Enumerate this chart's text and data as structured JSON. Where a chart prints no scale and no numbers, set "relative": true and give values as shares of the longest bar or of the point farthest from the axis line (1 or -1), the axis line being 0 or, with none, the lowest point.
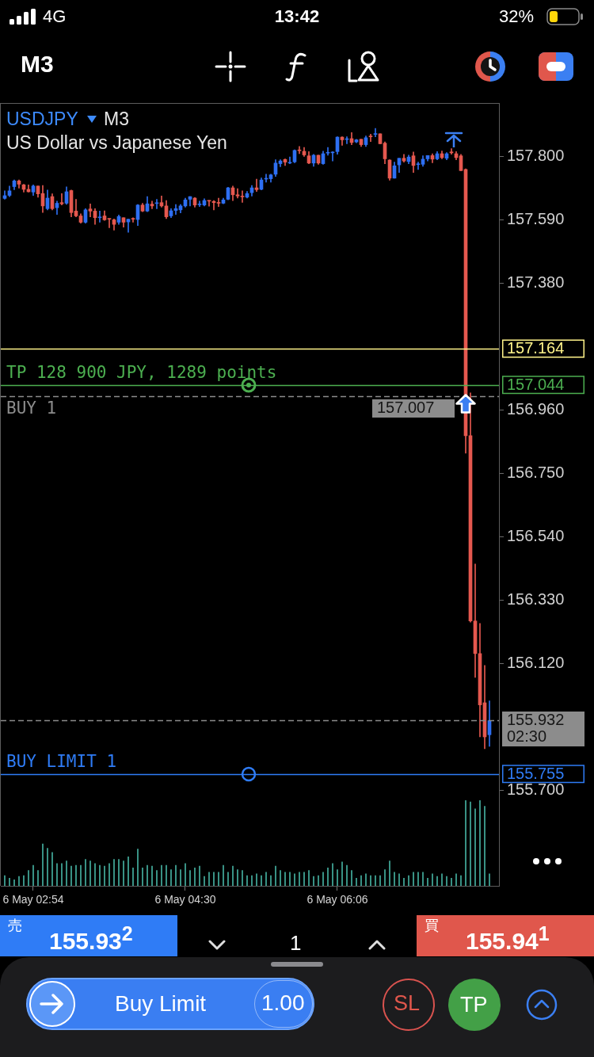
{
  "chart_data": [
    {
      "type": "candlestick",
      "title": "USDJPY",
      "subtitle": "US Dollar vs Japanese Yen",
      "categories": [
        null,
        null,
        null,
        null,
        null,
        null,
        null,
        null,
        null,
        null,
        null,
        null,
        null,
        null,
        null,
        null,
        null,
        null,
        null,
        null,
        null,
        null,
        null,
        null,
        null,
        null,
        null,
        null,
        null,
        null,
        null,
        null,
        null,
        null,
        null,
        null,
        null,
        null,
        null,
        null,
        null,
        null,
        null,
        null,
        null,
        null,
        null,
        null,
        null,
        null,
        null,
        null,
        null,
        null,
        null,
        null,
        null,
        null,
        null,
        null,
        null,
        null,
        null,
        null,
        null,
        null,
        null,
        null,
        null,
        null,
        null,
        null,
        null,
        null,
        null,
        null,
        null,
        null,
        null,
        null,
        null,
        null,
        null,
        null,
        null,
        null,
        null,
        null,
        null,
        null,
        null,
        null,
        null,
        null,
        null,
        null,
        null,
        null,
        null,
        null,
        null,
        null,
        null
      ],
      "ohlc": [
        [
          157.662,
          157.687,
          157.659,
          157.671
        ],
        [
          157.672,
          157.703,
          157.668,
          157.687
        ],
        [
          157.701,
          157.723,
          157.691,
          157.72
        ],
        [
          157.72,
          157.723,
          157.696,
          157.709
        ],
        [
          157.707,
          157.709,
          157.683,
          157.692
        ],
        [
          157.692,
          157.707,
          157.683,
          157.684
        ],
        [
          157.683,
          157.707,
          157.672,
          157.703
        ],
        [
          157.703,
          157.703,
          157.666,
          157.677
        ],
        [
          157.678,
          157.705,
          157.615,
          157.637
        ],
        [
          157.628,
          157.69,
          157.624,
          157.663
        ],
        [
          157.668,
          157.677,
          157.624,
          157.628
        ],
        [
          157.631,
          157.653,
          157.609,
          157.646
        ],
        [
          157.648,
          157.678,
          157.64,
          157.644
        ],
        [
          157.646,
          157.7,
          157.642,
          157.684
        ],
        [
          157.688,
          157.69,
          157.601,
          157.615
        ],
        [
          157.62,
          157.659,
          157.601,
          157.604
        ],
        [
          157.604,
          157.611,
          157.58,
          157.583
        ],
        [
          157.583,
          157.628,
          157.58,
          157.624
        ],
        [
          157.627,
          157.644,
          157.601,
          157.62
        ],
        [
          157.62,
          157.628,
          157.576,
          157.598
        ],
        [
          157.598,
          157.62,
          157.583,
          157.599
        ],
        [
          157.604,
          157.621,
          157.589,
          157.591
        ],
        [
          157.594,
          157.595,
          157.565,
          157.593
        ],
        [
          157.591,
          157.594,
          157.557,
          157.576
        ],
        [
          157.583,
          157.607,
          157.576,
          157.602
        ],
        [
          157.598,
          157.598,
          157.567,
          157.583
        ],
        [
          157.584,
          157.593,
          157.55,
          157.593
        ],
        [
          157.594,
          157.598,
          157.583,
          157.593
        ],
        [
          157.592,
          157.642,
          157.572,
          157.64
        ],
        [
          157.64,
          157.646,
          157.618,
          157.62
        ],
        [
          157.62,
          157.668,
          157.618,
          157.644
        ],
        [
          157.643,
          157.653,
          157.628,
          157.637
        ],
        [
          157.645,
          157.659,
          157.628,
          157.646
        ],
        [
          157.648,
          157.67,
          157.633,
          157.637
        ],
        [
          157.637,
          157.655,
          157.595,
          157.601
        ],
        [
          157.604,
          157.628,
          157.598,
          157.621
        ],
        [
          157.622,
          157.642,
          157.609,
          157.628
        ],
        [
          157.624,
          157.642,
          157.614,
          157.637
        ],
        [
          157.637,
          157.663,
          157.633,
          157.657
        ],
        [
          157.659,
          157.668,
          157.637,
          157.668
        ],
        [
          157.663,
          157.665,
          157.633,
          157.64
        ],
        [
          157.641,
          157.653,
          157.635,
          157.642
        ],
        [
          157.64,
          157.661,
          157.637,
          157.655
        ],
        [
          157.655,
          157.655,
          157.636,
          157.653
        ],
        [
          157.652,
          157.655,
          157.624,
          157.648
        ],
        [
          157.648,
          157.663,
          157.635,
          157.646
        ],
        [
          157.646,
          157.663,
          157.644,
          157.657
        ],
        [
          157.659,
          157.699,
          157.657,
          157.697
        ],
        [
          157.697,
          157.703,
          157.655,
          157.674
        ],
        [
          157.674,
          157.694,
          157.663,
          157.67
        ],
        [
          157.669,
          157.687,
          157.649,
          157.667
        ],
        [
          157.666,
          157.685,
          157.663,
          157.678
        ],
        [
          157.681,
          157.705,
          157.67,
          157.697
        ],
        [
          157.697,
          157.726,
          157.685,
          157.691
        ],
        [
          157.692,
          157.73,
          157.69,
          157.723
        ],
        [
          157.726,
          157.742,
          157.716,
          157.727
        ],
        [
          157.727,
          157.742,
          157.716,
          157.74
        ],
        [
          157.742,
          157.79,
          157.735,
          157.779
        ],
        [
          157.777,
          157.79,
          157.767,
          157.786
        ],
        [
          157.791,
          157.793,
          157.771,
          157.782
        ],
        [
          157.779,
          157.799,
          157.777,
          157.78
        ],
        [
          157.783,
          157.823,
          157.78,
          157.821
        ],
        [
          157.822,
          157.834,
          157.81,
          157.82
        ],
        [
          157.818,
          157.831,
          157.801,
          157.806
        ],
        [
          157.803,
          157.817,
          157.777,
          157.779
        ],
        [
          157.779,
          157.808,
          157.768,
          157.805
        ],
        [
          157.805,
          157.805,
          157.775,
          157.779
        ],
        [
          157.777,
          157.818,
          157.775,
          157.81
        ],
        [
          157.812,
          157.831,
          157.805,
          157.813
        ],
        [
          157.813,
          157.817,
          157.786,
          157.814
        ],
        [
          157.817,
          157.866,
          157.808,
          157.865
        ],
        [
          157.865,
          157.866,
          157.838,
          157.856
        ],
        [
          157.857,
          157.866,
          157.843,
          157.858
        ],
        [
          157.86,
          157.88,
          157.84,
          157.847
        ],
        [
          157.849,
          157.858,
          157.846,
          157.856
        ],
        [
          157.858,
          157.858,
          157.834,
          157.84
        ],
        [
          157.84,
          157.869,
          157.834,
          157.863
        ],
        [
          157.868,
          157.875,
          157.85,
          157.866
        ],
        [
          157.874,
          157.894,
          157.866,
          157.875
        ],
        [
          157.876,
          157.876,
          157.843,
          157.843
        ],
        [
          157.845,
          157.849,
          157.777,
          157.793
        ],
        [
          157.789,
          157.79,
          157.722,
          157.729
        ],
        [
          157.729,
          157.782,
          157.729,
          157.77
        ],
        [
          157.773,
          157.795,
          157.748,
          157.795
        ],
        [
          157.795,
          157.808,
          157.782,
          157.786
        ],
        [
          157.784,
          157.805,
          157.777,
          157.799
        ],
        [
          157.803,
          157.816,
          157.748,
          157.771
        ],
        [
          157.774,
          157.782,
          157.758,
          157.775
        ],
        [
          157.775,
          157.803,
          157.768,
          157.792
        ],
        [
          157.793,
          157.804,
          157.786,
          157.804
        ],
        [
          157.804,
          157.81,
          157.78,
          157.792
        ],
        [
          157.793,
          157.817,
          157.79,
          157.81
        ],
        [
          157.81,
          157.819,
          157.793,
          157.797
        ],
        [
          157.795,
          157.814,
          157.79,
          157.81
        ],
        [
          157.816,
          157.827,
          157.808,
          157.813
        ],
        [
          157.81,
          157.817,
          157.79,
          157.797
        ],
        [
          157.803,
          157.808,
          157.754,
          157.754
        ],
        [
          157.758,
          157.76,
          156.818,
          156.876
        ],
        [
          156.876,
          157.018,
          156.258,
          156.262
        ],
        [
          156.262,
          156.451,
          156.075,
          156.154
        ],
        [
          156.154,
          156.254,
          155.878,
          155.984
        ],
        [
          155.991,
          156.115,
          155.839,
          155.878
        ],
        [
          155.885,
          155.997,
          155.847,
          155.932
        ]
      ],
      "colors": [
        "#2e6ff2",
        "#2e6ff2",
        "#2e6ff2",
        "#e5584f",
        "#e5584f",
        "#e5584f",
        "#2e6ff2",
        "#e5584f",
        "#e5584f",
        "#2e6ff2",
        "#e5584f",
        "#2e6ff2",
        "#e5584f",
        "#2e6ff2",
        "#e5584f",
        "#e5584f",
        "#e5584f",
        "#2e6ff2",
        "#e5584f",
        "#e5584f",
        "#2e6ff2",
        "#e5584f",
        "#e5584f",
        "#e5584f",
        "#2e6ff2",
        "#e5584f",
        "#2e6ff2",
        "#e5584f",
        "#2e6ff2",
        "#e5584f",
        "#2e6ff2",
        "#e5584f",
        "#2e6ff2",
        "#e5584f",
        "#e5584f",
        "#2e6ff2",
        "#2e6ff2",
        "#2e6ff2",
        "#2e6ff2",
        "#2e6ff2",
        "#e5584f",
        "#2e6ff2",
        "#2e6ff2",
        "#e5584f",
        "#e5584f",
        "#e5584f",
        "#2e6ff2",
        "#2e6ff2",
        "#e5584f",
        "#e5584f",
        "#e5584f",
        "#2e6ff2",
        "#2e6ff2",
        "#e5584f",
        "#2e6ff2",
        "#2e6ff2",
        "#2e6ff2",
        "#2e6ff2",
        "#2e6ff2",
        "#e5584f",
        "#2e6ff2",
        "#2e6ff2",
        "#e5584f",
        "#e5584f",
        "#e5584f",
        "#2e6ff2",
        "#e5584f",
        "#2e6ff2",
        "#2e6ff2",
        "#2e6ff2",
        "#2e6ff2",
        "#e5584f",
        "#2e6ff2",
        "#e5584f",
        "#2e6ff2",
        "#e5584f",
        "#2e6ff2",
        "#e5584f",
        "#2e6ff2",
        "#e5584f",
        "#e5584f",
        "#e5584f",
        "#2e6ff2",
        "#2e6ff2",
        "#e5584f",
        "#2e6ff2",
        "#e5584f",
        "#2e6ff2",
        "#2e6ff2",
        "#2e6ff2",
        "#e5584f",
        "#2e6ff2",
        "#e5584f",
        "#2e6ff2",
        "#e5584f",
        "#e5584f",
        "#e5584f",
        "#e5584f",
        "#e5584f",
        "#e5584f",
        "#e5584f",
        "#e5584f",
        "#2e6ff2"
      ],
      "ylim": [
        155.668,
        157.978
      ],
      "yticks": [
        {
          "value": 157.8,
          "label": "157.800"
        },
        {
          "value": 157.59,
          "label": "157.590"
        },
        {
          "value": 157.38,
          "label": "157.380"
        },
        {
          "value": 156.96,
          "label": "156.960"
        },
        {
          "value": 156.75,
          "label": "156.750"
        },
        {
          "value": 156.54,
          "label": "156.540"
        },
        {
          "value": 156.33,
          "label": "156.330"
        },
        {
          "value": 156.12,
          "label": "156.120"
        },
        {
          "value": 155.7,
          "label": "155.700"
        }
      ],
      "ref_lines": [
        {
          "axis": "y",
          "value": 157.164,
          "label": "157.164",
          "color": "#fff38a"
        },
        {
          "axis": "y",
          "value": 157.044,
          "label": "157.044",
          "color": "#4caf50"
        },
        {
          "axis": "y",
          "value": 157.007,
          "label": "157.007",
          "color": "#8c8c8c",
          "line_style": "dashed"
        },
        {
          "axis": "y",
          "value": 155.932,
          "label": "155.932\n02:30",
          "color": "#8c8c8c",
          "line_style": "dashed"
        },
        {
          "axis": "y",
          "value": 155.755,
          "label": "155.755",
          "color": "#2f7cf6"
        }
      ],
      "annotations": [
        "4G",
        "13:42",
        "32%",
        "M3",
        "M3",
        {
          "text": "TP 128 900 JPY, 1289 points",
          "y": 157.044
        },
        {
          "text": "BUY 1",
          "y": 157.007
        },
        {
          "text": "BUY LIMIT 1",
          "y": 155.755
        },
        "売",
        "155.93$^{2}$",
        "1",
        "買",
        "155.94$^{1}$",
        "Buy Limit",
        "1.00",
        "SL",
        "TP"
      ]
    },
    {
      "type": "bar",
      "relative": true,
      "color": "#45b0a0",
      "categories": [
        null,
        null,
        null,
        null,
        null,
        null,
        "6 May 02:54",
        null,
        null,
        null,
        null,
        null,
        null,
        null,
        null,
        null,
        null,
        null,
        null,
        null,
        null,
        null,
        null,
        null,
        null,
        null,
        null,
        null,
        null,
        null,
        null,
        null,
        null,
        null,
        null,
        null,
        null,
        null,
        "6 May 04:30",
        null,
        null,
        null,
        null,
        null,
        null,
        null,
        null,
        null,
        null,
        null,
        null,
        null,
        null,
        null,
        null,
        null,
        null,
        null,
        null,
        null,
        null,
        null,
        null,
        null,
        null,
        null,
        null,
        null,
        null,
        null,
        "6 May 06:06",
        null,
        null,
        null,
        null,
        null,
        null,
        null,
        null,
        null,
        null,
        null,
        null,
        null,
        null,
        null,
        null,
        null,
        null,
        null,
        null,
        null,
        null,
        null,
        null,
        null,
        null,
        null,
        null,
        null,
        null,
        null,
        null
      ],
      "values": [
        0.12,
        0.09,
        0.07,
        0.11,
        0.12,
        0.18,
        0.24,
        0.18,
        0.49,
        0.44,
        0.39,
        0.26,
        0.26,
        0.29,
        0.23,
        0.24,
        0.24,
        0.31,
        0.29,
        0.26,
        0.24,
        0.23,
        0.26,
        0.31,
        0.31,
        0.29,
        0.34,
        0.21,
        0.43,
        0.21,
        0.24,
        0.23,
        0.18,
        0.24,
        0.24,
        0.19,
        0.24,
        0.19,
        0.26,
        0.18,
        0.21,
        0.23,
        0.11,
        0.16,
        0.16,
        0.16,
        0.24,
        0.16,
        0.23,
        0.19,
        0.18,
        0.12,
        0.12,
        0.14,
        0.12,
        0.16,
        0.12,
        0.23,
        0.18,
        0.16,
        0.16,
        0.14,
        0.16,
        0.16,
        0.18,
        0.11,
        0.12,
        0.16,
        0.21,
        0.26,
        0.19,
        0.28,
        0.24,
        0.18,
        0.09,
        0.12,
        0.14,
        0.12,
        0.12,
        0.12,
        0.19,
        0.29,
        0.16,
        0.14,
        0.09,
        0.12,
        0.16,
        0.16,
        0.16,
        0.09,
        0.14,
        0.11,
        0.14,
        0.11,
        0.09,
        0.14,
        0.12,
        1,
        0.98,
        0.9,
        1,
        0.93,
        0.14
      ]
    }
  ]
}
